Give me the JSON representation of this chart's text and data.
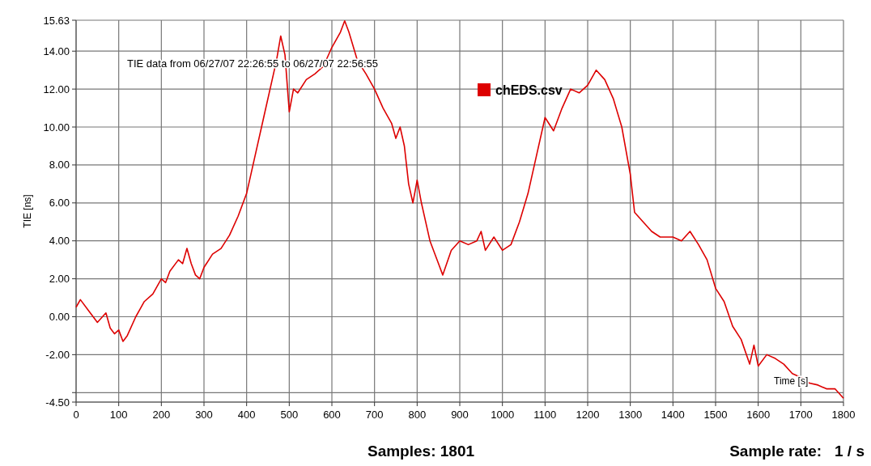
{
  "chart_data": {
    "type": "line",
    "xlabel": "Samples: 1801",
    "ylabel": "TIE [ns]",
    "annotations": [
      "TIE data from 06/27/07 22:26:55 to 06/27/07 22:56:55",
      "Sample rate:   1 / s",
      "Time [s]"
    ],
    "x": [
      0,
      10,
      30,
      50,
      70,
      80,
      90,
      100,
      110,
      120,
      140,
      150,
      160,
      180,
      200,
      210,
      220,
      240,
      250,
      260,
      270,
      280,
      290,
      300,
      320,
      340,
      360,
      380,
      400,
      420,
      440,
      460,
      470,
      480,
      490,
      500,
      510,
      520,
      540,
      560,
      580,
      600,
      620,
      630,
      640,
      660,
      680,
      700,
      720,
      740,
      750,
      760,
      770,
      780,
      790,
      800,
      810,
      830,
      850,
      860,
      880,
      900,
      920,
      940,
      950,
      960,
      980,
      1000,
      1020,
      1040,
      1060,
      1080,
      1100,
      1120,
      1140,
      1160,
      1180,
      1200,
      1220,
      1240,
      1260,
      1280,
      1300,
      1310,
      1330,
      1350,
      1370,
      1400,
      1420,
      1440,
      1460,
      1480,
      1500,
      1520,
      1540,
      1560,
      1580,
      1590,
      1600,
      1620,
      1640,
      1660,
      1680,
      1700,
      1720,
      1740,
      1760,
      1780,
      1800
    ],
    "series": [
      {
        "name": "chEDS.csv",
        "color": "#dd0000",
        "values": [
          0.5,
          0.9,
          0.3,
          -0.3,
          0.2,
          -0.6,
          -0.9,
          -0.7,
          -1.3,
          -1.0,
          0.0,
          0.4,
          0.8,
          1.2,
          2.0,
          1.8,
          2.4,
          3.0,
          2.8,
          3.6,
          2.8,
          2.2,
          2.0,
          2.6,
          3.3,
          3.6,
          4.3,
          5.3,
          6.5,
          8.5,
          10.5,
          12.5,
          13.5,
          14.8,
          13.8,
          10.8,
          12.0,
          11.8,
          12.5,
          12.8,
          13.2,
          14.2,
          15.0,
          15.6,
          15.0,
          13.5,
          12.8,
          12.0,
          11.0,
          10.2,
          9.4,
          10.0,
          9.0,
          7.0,
          6.0,
          7.2,
          6.0,
          4.0,
          2.8,
          2.2,
          3.5,
          4.0,
          3.8,
          4.0,
          4.5,
          3.5,
          4.2,
          3.5,
          3.8,
          5.0,
          6.5,
          8.5,
          10.5,
          9.8,
          11.0,
          12.0,
          11.8,
          12.2,
          13.0,
          12.5,
          11.5,
          10.0,
          7.5,
          5.5,
          5.0,
          4.5,
          4.2,
          4.2,
          4.0,
          4.5,
          3.8,
          3.0,
          1.5,
          0.8,
          -0.5,
          -1.2,
          -2.5,
          -1.5,
          -2.6,
          -2.0,
          -2.2,
          -2.5,
          -3.0,
          -3.2,
          -3.5,
          -3.6,
          -3.8,
          -3.8,
          -4.3
        ]
      }
    ],
    "xlim": [
      0,
      1800
    ],
    "xticks": [
      0,
      100,
      200,
      300,
      400,
      500,
      600,
      700,
      800,
      900,
      1000,
      1100,
      1200,
      1300,
      1400,
      1500,
      1600,
      1700,
      1800
    ],
    "ylim": [
      -4.5,
      15.63
    ],
    "yticks": [
      {
        "value": -4.5,
        "label": "-4.50"
      },
      {
        "value": -4,
        "label": null
      },
      {
        "value": -2,
        "label": "-2.00"
      },
      {
        "value": 0,
        "label": "0.00"
      },
      {
        "value": 2,
        "label": "2.00"
      },
      {
        "value": 4,
        "label": "4.00"
      },
      {
        "value": 6,
        "label": "6.00"
      },
      {
        "value": 8,
        "label": "8.00"
      },
      {
        "value": 10,
        "label": "10.00"
      },
      {
        "value": 12,
        "label": "12.00"
      },
      {
        "value": 14,
        "label": "14.00"
      },
      {
        "value": 15.63,
        "label": "15.63"
      }
    ],
    "grid": true,
    "legend": "top",
    "line_style": "solid"
  }
}
